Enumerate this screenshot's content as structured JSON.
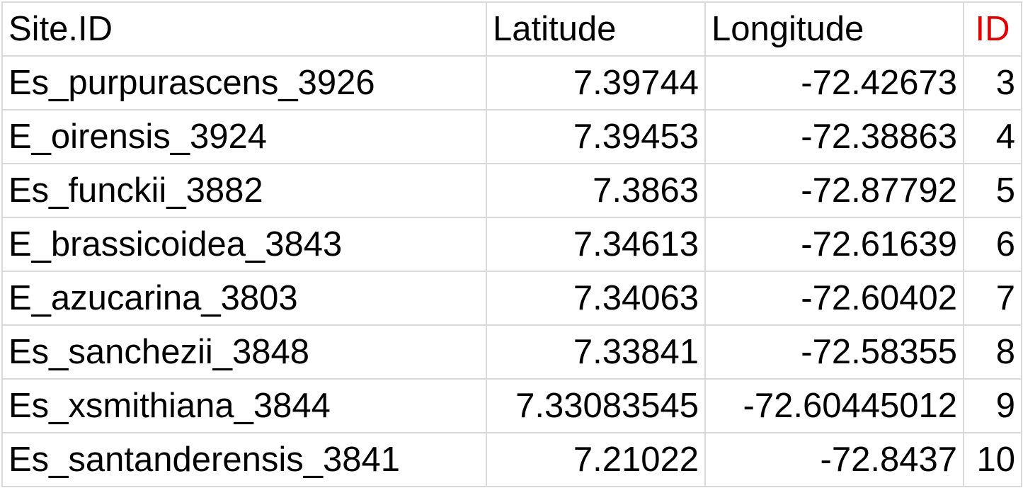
{
  "table": {
    "headers": {
      "site_id": "Site.ID",
      "latitude": "Latitude",
      "longitude": "Longitude",
      "id": "ID"
    },
    "header_id_color": "#e10000",
    "rows": [
      {
        "site_id": "Es_purpurascens_3926",
        "latitude": "7.39744",
        "longitude": "-72.42673",
        "id": "3"
      },
      {
        "site_id": "E_oirensis_3924",
        "latitude": "7.39453",
        "longitude": "-72.38863",
        "id": "4"
      },
      {
        "site_id": "Es_funckii_3882",
        "latitude": "7.3863",
        "longitude": "-72.87792",
        "id": "5"
      },
      {
        "site_id": "E_brassicoidea_3843",
        "latitude": "7.34613",
        "longitude": "-72.61639",
        "id": "6"
      },
      {
        "site_id": "E_azucarina_3803",
        "latitude": "7.34063",
        "longitude": "-72.60402",
        "id": "7"
      },
      {
        "site_id": "Es_sanchezii_3848",
        "latitude": "7.33841",
        "longitude": "-72.58355",
        "id": "8"
      },
      {
        "site_id": "Es_xsmithiana_3844",
        "latitude": "7.33083545",
        "longitude": "-72.60445012",
        "id": "9"
      },
      {
        "site_id": "Es_santanderensis_3841",
        "latitude": "7.21022",
        "longitude": "-72.8437",
        "id": "10"
      }
    ]
  }
}
